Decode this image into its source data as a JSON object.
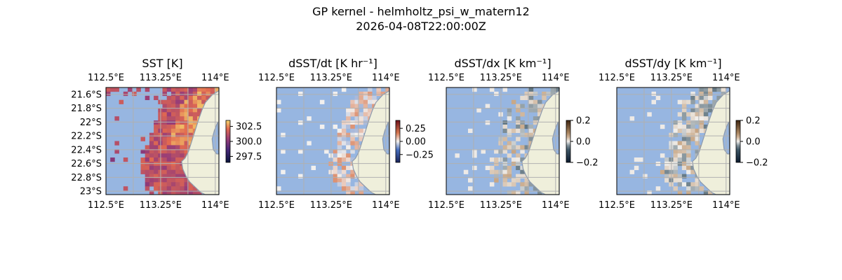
{
  "figure": {
    "title_line1": "GP kernel - helmholtz_psi_w_matern12",
    "title_line2": "2026-04-08T22:00:00Z"
  },
  "colors": {
    "ocean": "#97b6e1",
    "land": "#efefdb",
    "coast": "#8c9aad",
    "grid": "#b0b0b0"
  },
  "chart_data": [
    {
      "type": "heatmap",
      "title": "SST [K]",
      "x_ticks": [
        "112.5°E",
        "113.25°E",
        "114°E"
      ],
      "x_tick_values": [
        112.5,
        113.25,
        114.0
      ],
      "y_ticks": [
        "21.6°S",
        "21.8°S",
        "22°S",
        "22.2°S",
        "22.4°S",
        "22.6°S",
        "22.8°S",
        "23°S"
      ],
      "y_tick_values": [
        -21.6,
        -21.8,
        -22.0,
        -22.2,
        -22.4,
        -22.6,
        -22.8,
        -23.0
      ],
      "xlim": [
        112.5,
        114.05
      ],
      "ylim": [
        -23.05,
        -21.5
      ],
      "grid": true,
      "colorbar": {
        "ticks": [
          "302.5",
          "300.0",
          "297.5"
        ],
        "tick_values": [
          302.5,
          300.0,
          297.5
        ],
        "range": [
          296.5,
          303.5
        ],
        "cmap": "thermal"
      }
    },
    {
      "type": "heatmap",
      "title": "dSST/dt [K hr⁻¹]",
      "x_ticks": [
        "112.5°E",
        "113.25°E",
        "114°E"
      ],
      "x_tick_values": [
        112.5,
        113.25,
        114.0
      ],
      "xlim": [
        112.5,
        114.05
      ],
      "ylim": [
        -23.05,
        -21.5
      ],
      "grid": true,
      "colorbar": {
        "ticks": [
          "0.25",
          "0.00",
          "−0.25"
        ],
        "tick_values": [
          0.25,
          0.0,
          -0.25
        ],
        "range": [
          -0.4,
          0.4
        ],
        "cmap": "balance"
      }
    },
    {
      "type": "heatmap",
      "title": "dSST/dx [K km⁻¹]",
      "x_ticks": [
        "112.5°E",
        "113.25°E",
        "114°E"
      ],
      "x_tick_values": [
        112.5,
        113.25,
        114.0
      ],
      "xlim": [
        112.5,
        114.05
      ],
      "ylim": [
        -23.05,
        -21.5
      ],
      "grid": true,
      "colorbar": {
        "ticks": [
          "0.2",
          "0.0",
          "−0.2"
        ],
        "tick_values": [
          0.2,
          0.0,
          -0.2
        ],
        "range": [
          -0.2,
          0.2
        ],
        "cmap": "diff"
      }
    },
    {
      "type": "heatmap",
      "title": "dSST/dy [K km⁻¹]",
      "x_ticks": [
        "112.5°E",
        "113.25°E",
        "114°E"
      ],
      "x_tick_values": [
        112.5,
        113.25,
        114.0
      ],
      "xlim": [
        112.5,
        114.05
      ],
      "ylim": [
        -23.05,
        -21.5
      ],
      "grid": true,
      "colorbar": {
        "ticks": [
          "0.2",
          "0.0",
          "−0.2"
        ],
        "tick_values": [
          0.2,
          0.0,
          -0.2
        ],
        "range": [
          -0.2,
          0.2
        ],
        "cmap": "diff"
      }
    }
  ]
}
